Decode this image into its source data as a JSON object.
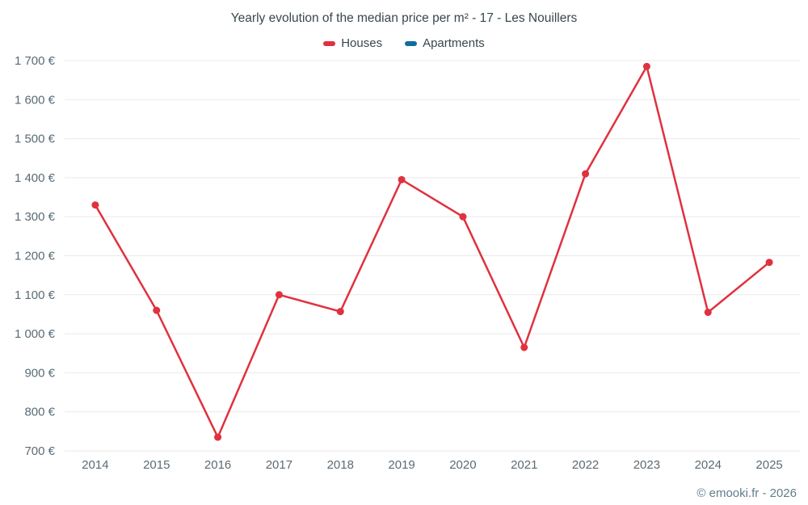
{
  "chart_data": {
    "type": "line",
    "title": "Yearly evolution of the median price per m² - 17 - Les Nouillers",
    "x": [
      2014,
      2015,
      2016,
      2017,
      2018,
      2019,
      2020,
      2021,
      2022,
      2023,
      2024,
      2025
    ],
    "series": [
      {
        "name": "Houses",
        "color": "#e0313f",
        "values": [
          1330,
          1060,
          735,
          1100,
          1057,
          1395,
          1300,
          965,
          1410,
          1685,
          1055,
          1183
        ]
      },
      {
        "name": "Apartments",
        "color": "#0f6e9c",
        "values": []
      }
    ],
    "xlabel": "",
    "ylabel": "",
    "ylim": [
      700,
      1700
    ],
    "ytick_step": 100,
    "ytick_suffix": " €",
    "grid": "horizontal",
    "legend_position": "top"
  },
  "footer": {
    "watermark": "© emooki.fr - 2026"
  }
}
